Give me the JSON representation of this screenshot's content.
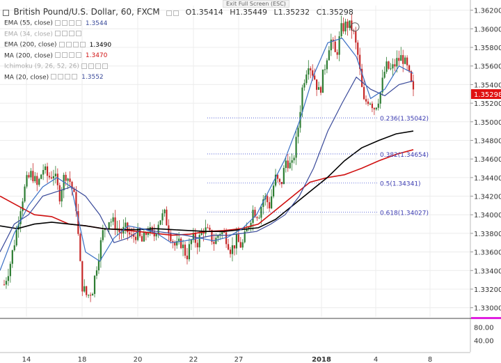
{
  "header": {
    "title": "British Pound/U.S. Dollar, 60, FXCM",
    "open": "O1.35414",
    "high": "H1.35449",
    "low": "L1.35232",
    "close": "C1.35298",
    "exit_fullscreen": "Exit Full Screen (ESC)"
  },
  "indicators": [
    {
      "label": "EMA (55, close)",
      "value": "1.3544",
      "color": "#3a4a9a",
      "faded": false
    },
    {
      "label": "EMA (34, close)",
      "value": "",
      "color": "#aaaaaa",
      "faded": true
    },
    {
      "label": "EMA (200, close)",
      "value": "1.3490",
      "color": "#000000",
      "faded": false
    },
    {
      "label": "MA (200, close)",
      "value": "1.3470",
      "color": "#d01010",
      "faded": false
    },
    {
      "label": "Ichimoku (9, 26, 52, 26)",
      "value": "",
      "color": "#aaaaaa",
      "faded": true
    },
    {
      "label": "MA (20, close)",
      "value": "1.3552",
      "color": "#3a4a9a",
      "faded": false
    }
  ],
  "colors": {
    "up_candle": "#2d7d32",
    "down_candle": "#c62828",
    "ema55": "#3a4a9a",
    "ma20": "#3a6fc4",
    "ema200": "#000000",
    "ma200": "#d01010",
    "fib": "#3a4ad0",
    "price_label_bg": "#e01010",
    "rsi_marker": "#e020e0"
  },
  "chart_data": {
    "type": "candlestick",
    "symbol": "GBPUSD",
    "timeframe": "60",
    "ylim": [
      1.329,
      1.3625
    ],
    "y_ticks": [
      "1.36200",
      "1.36000",
      "1.35800",
      "1.35600",
      "1.35400",
      "1.35200",
      "1.35000",
      "1.34800",
      "1.34600",
      "1.34400",
      "1.34200",
      "1.34000",
      "1.33800",
      "1.33600",
      "1.33400",
      "1.33200",
      "1.33000"
    ],
    "x_ticks": [
      "14",
      "18",
      "20",
      "22",
      "27",
      "2018",
      "4",
      "8"
    ],
    "last_price": "1.35298",
    "fib_levels": [
      {
        "label": "0.236(1.35042)",
        "value": 1.35042
      },
      {
        "label": "0.382(1.34654)",
        "value": 1.34654
      },
      {
        "label": "0.5(1.34341)",
        "value": 1.34341
      },
      {
        "label": "0.618(1.34027)",
        "value": 1.34027
      }
    ],
    "close_path": [
      1.3325,
      1.3345,
      1.3375,
      1.341,
      1.3435,
      1.3445,
      1.343,
      1.345,
      1.344,
      1.3445,
      1.342,
      1.3445,
      1.3435,
      1.341,
      1.3325,
      1.3312,
      1.332,
      1.3355,
      1.3385,
      1.3395,
      1.339,
      1.338,
      1.3385,
      1.3375,
      1.338,
      1.337,
      1.3385,
      1.3375,
      1.3395,
      1.34,
      1.338,
      1.3365,
      1.337,
      1.3355,
      1.3375,
      1.337,
      1.3385,
      1.338,
      1.337,
      1.3382,
      1.3378,
      1.3362,
      1.3372,
      1.3366,
      1.3385,
      1.3405,
      1.34,
      1.342,
      1.341,
      1.344,
      1.343,
      1.346,
      1.345,
      1.3485,
      1.354,
      1.3565,
      1.355,
      1.353,
      1.356,
      1.359,
      1.357,
      1.36,
      1.3605,
      1.36,
      1.357,
      1.352,
      1.3525,
      1.3515,
      1.353,
      1.356,
      1.3555,
      1.3565,
      1.357,
      1.3555,
      1.353
    ],
    "ema55_path": [
      1.336,
      1.339,
      1.34,
      1.342,
      1.3425,
      1.343,
      1.342,
      1.34,
      1.337,
      1.3375,
      1.3385,
      1.3382,
      1.338,
      1.3378,
      1.3375,
      1.3378,
      1.3378,
      1.338,
      1.3382,
      1.339,
      1.34,
      1.342,
      1.345,
      1.349,
      1.352,
      1.3548,
      1.3535,
      1.3528,
      1.354,
      1.3544
    ],
    "ma20_path": [
      1.334,
      1.338,
      1.341,
      1.343,
      1.344,
      1.343,
      1.336,
      1.335,
      1.3375,
      1.3388,
      1.3385,
      1.338,
      1.337,
      1.3372,
      1.3375,
      1.3372,
      1.3376,
      1.3385,
      1.34,
      1.343,
      1.346,
      1.35,
      1.355,
      1.3585,
      1.359,
      1.357,
      1.3525,
      1.3535,
      1.356,
      1.3552
    ],
    "ema200_path": [
      1.3388,
      1.3385,
      1.339,
      1.3392,
      1.339,
      1.3388,
      1.3385,
      1.3384,
      1.3384,
      1.3385,
      1.3384,
      1.3383,
      1.3382,
      1.3382,
      1.3384,
      1.3386,
      1.3395,
      1.341,
      1.3425,
      1.344,
      1.3458,
      1.3472,
      1.348,
      1.3487,
      1.349
    ],
    "ma200_path": [
      1.342,
      1.341,
      1.34,
      1.3398,
      1.339,
      1.3388,
      1.3385,
      1.3384,
      1.3382,
      1.338,
      1.3378,
      1.3379,
      1.3382,
      1.3383,
      1.3385,
      1.339,
      1.3405,
      1.342,
      1.3435,
      1.344,
      1.3443,
      1.345,
      1.3458,
      1.3465,
      1.347
    ],
    "rsi": {
      "ticks": [
        "80.00",
        "40.00"
      ]
    }
  }
}
